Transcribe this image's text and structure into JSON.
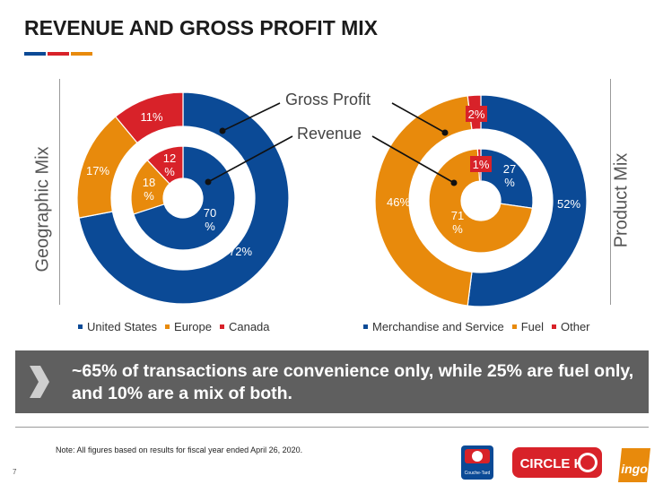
{
  "title": "REVENUE AND GROSS PROFIT MIX",
  "colors": {
    "blue": "#0b4a96",
    "orange": "#e88a0c",
    "red": "#d82229",
    "grey_banner": "#5f5f5f"
  },
  "left_side_label": "Geographic Mix",
  "right_side_label": "Product Mix",
  "callouts": {
    "gross_profit": "Gross Profit",
    "revenue": "Revenue"
  },
  "chart_data": [
    {
      "type": "pie",
      "title": "Geographic Mix",
      "legend_position": "bottom",
      "legend": [
        "United States",
        "Europe",
        "Canada"
      ],
      "series": [
        {
          "name": "Gross Profit",
          "labels": [
            "United States",
            "Europe",
            "Canada"
          ],
          "values": [
            72,
            17,
            11
          ],
          "value_labels": [
            "72%",
            "17%",
            "11%"
          ]
        },
        {
          "name": "Revenue",
          "labels": [
            "United States",
            "Europe",
            "Canada"
          ],
          "values": [
            70,
            18,
            12
          ],
          "value_labels": [
            "70\n%",
            "18\n%",
            "12\n%"
          ]
        }
      ]
    },
    {
      "type": "pie",
      "title": "Product Mix",
      "legend_position": "bottom",
      "legend": [
        "Merchandise and Service",
        "Fuel",
        "Other"
      ],
      "series": [
        {
          "name": "Gross Profit",
          "labels": [
            "Merchandise and Service",
            "Fuel",
            "Other"
          ],
          "values": [
            52,
            46,
            2
          ],
          "value_labels": [
            "52%",
            "46%",
            "2%"
          ]
        },
        {
          "name": "Revenue",
          "labels": [
            "Merchandise and Service",
            "Fuel",
            "Other"
          ],
          "values": [
            27,
            71,
            1
          ],
          "value_labels": [
            "27\n%",
            "71\n%",
            "1%"
          ]
        }
      ]
    }
  ],
  "banner_text": "~65% of transactions are convenience only, while 25% are fuel only, and 10% are a mix of both.",
  "note": "Note: All figures based on results for fiscal year ended April 26, 2020.",
  "page_number": "7",
  "logos": {
    "couche_tard": "Couche-Tard",
    "circle_k": "CIRCLE K",
    "ingo": "ingo"
  }
}
